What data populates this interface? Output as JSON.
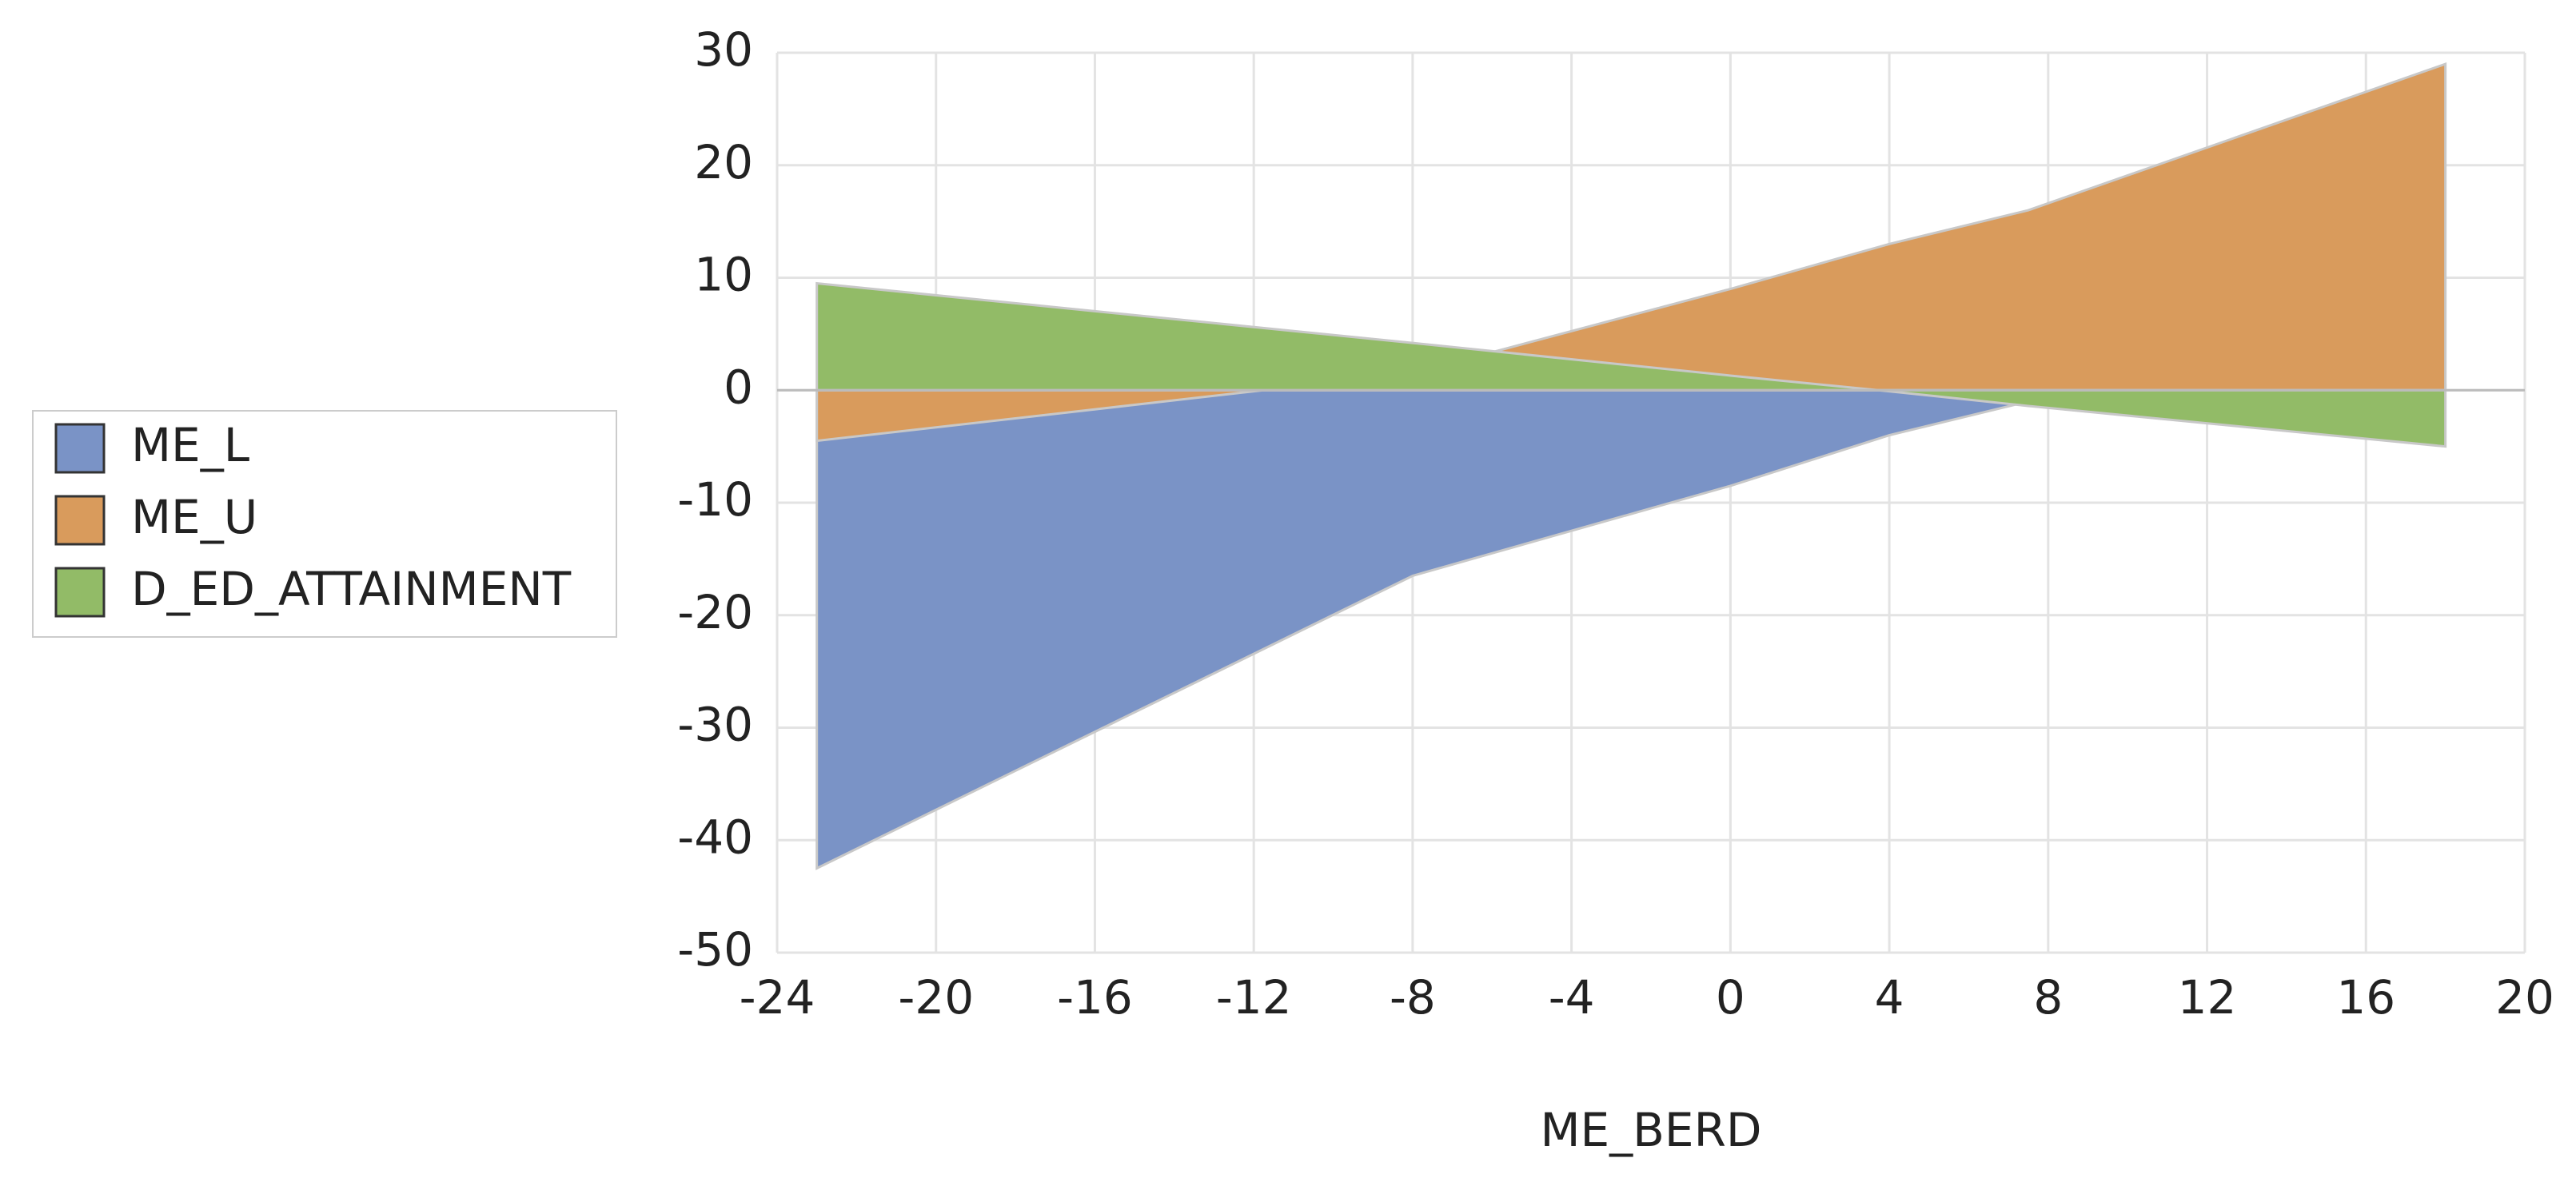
{
  "chart_data": {
    "type": "area",
    "x_label": "ME_BERD",
    "x": [
      -23,
      -8,
      0,
      4,
      7.5,
      18
    ],
    "series": [
      {
        "name": "ME_L",
        "color": "#7a93c6",
        "values": [
          -42.5,
          -16.5,
          -8.5,
          -4,
          -1,
          0.5
        ]
      },
      {
        "name": "ME_U",
        "color": "#d99b5c",
        "values": [
          -4.5,
          1.5,
          9,
          13,
          16,
          29
        ]
      },
      {
        "name": "D_ED_ATTAINMENT",
        "color": "#92bb67",
        "values": [
          9.5,
          4.2,
          1.3,
          -0.1,
          -1.4,
          -5
        ]
      }
    ],
    "xlim": [
      -24,
      20
    ],
    "xticks": [
      -24,
      -20,
      -16,
      -12,
      -8,
      -4,
      0,
      4,
      8,
      12,
      16,
      20
    ],
    "ylim": [
      -50,
      30
    ],
    "yticks": [
      -50,
      -40,
      -30,
      -20,
      -10,
      0,
      10,
      20,
      30
    ],
    "grid": true,
    "legend": "left"
  }
}
